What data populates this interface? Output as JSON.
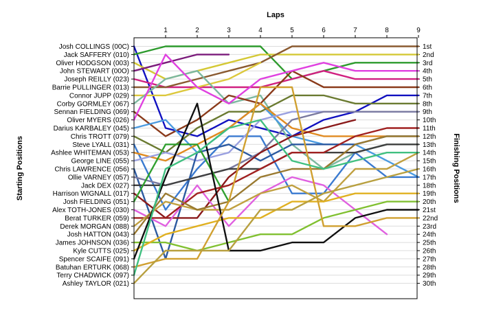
{
  "chart_data": {
    "type": "line",
    "title": "Laps",
    "xlabel": "Laps",
    "ylabel_left": "Starting Positions",
    "ylabel_right": "Finishing Positions",
    "x_ticks": [
      "1",
      "2",
      "3",
      "4",
      "5",
      "6",
      "7",
      "8",
      "9"
    ],
    "xlim": [
      0,
      9
    ],
    "ylim": [
      1,
      30
    ],
    "starting_positions": [
      "Josh COLLINGS (00C)",
      "Jack SAFFERY (010)",
      "Oliver HODGSON (003)",
      "John STEWART (00O)",
      "Joseph REILLY (023)",
      "Barrie PULLINGER (013)",
      "Connor JUPP (029)",
      "Corby GORMLEY (067)",
      "Sennan FIELDING (069)",
      "Oliver MYERS (026)",
      "Darius KARBALEY (045)",
      "Chris TROTT (079)",
      "Steve LYALL (031)",
      "Ashlee WHITEMAN (053)",
      "George LINE (055)",
      "Chris LAWRENCE (056)",
      "Ollie VARNEY (057)",
      "Jack DEX (027)",
      "Harrison WIGNALL (017)",
      "Josh FIELDING (051)",
      "Alex TOTH-JONES (030)",
      "Berat TURKER (059)",
      "Derek MORGAN (088)",
      "Josh HATTON (043)",
      "James JOHNSON (036)",
      "Kyle CUTTS (025)",
      "Spencer SCAIFE (091)",
      "Batuhan ERTURK (068)",
      "Terry CHADWICK (097)",
      "Ashley TAYLOR (021)"
    ],
    "finishing_positions": [
      "1st",
      "2nd",
      "3rd",
      "4th",
      "5th",
      "6th",
      "7th",
      "8th",
      "9th",
      "10th",
      "11th",
      "12th",
      "13th",
      "14th",
      "15th",
      "16th",
      "17th",
      "18th",
      "19th",
      "20th",
      "21st",
      "22nd",
      "23rd",
      "24th",
      "25th",
      "26th",
      "27th",
      "28th",
      "29th",
      "30th"
    ],
    "series": [
      {
        "color": "#1010c0",
        "values": [
          1,
          11,
          12,
          10,
          11,
          12,
          10,
          9,
          7,
          7
        ]
      },
      {
        "color": "#2c9a2c",
        "values": [
          2,
          1,
          1,
          1,
          1,
          5,
          4,
          3,
          3,
          3
        ]
      },
      {
        "color": "#d4c834",
        "values": [
          3,
          5,
          4,
          3,
          2,
          2,
          2,
          2,
          2,
          2
        ]
      },
      {
        "color": "#7a1a7a",
        "values": [
          4,
          3,
          2,
          2
        ]
      },
      {
        "color": "#d02080",
        "values": [
          5,
          6,
          6,
          6,
          6,
          5,
          4,
          5,
          5,
          5
        ]
      },
      {
        "color": "#8a5a30",
        "values": [
          6,
          6,
          5,
          4,
          3,
          1,
          1,
          1,
          1,
          1
        ]
      },
      {
        "color": "#dcc83c",
        "values": [
          7,
          7,
          6,
          5,
          3
        ]
      },
      {
        "color": "#7cb8a0",
        "values": [
          8,
          5,
          4,
          8,
          7,
          13,
          16,
          14,
          13,
          13
        ]
      },
      {
        "color": "#8a3a1a",
        "values": [
          9,
          12,
          10,
          7,
          8,
          4,
          6,
          6,
          6,
          6
        ]
      },
      {
        "color": "#e040e0",
        "values": [
          10,
          2,
          6,
          8,
          5,
          4,
          3,
          4,
          4,
          4
        ]
      },
      {
        "color": "#4a9ae0",
        "values": [
          11,
          10,
          14,
          11,
          8,
          12,
          13,
          13,
          15,
          17
        ]
      },
      {
        "color": "#6a7a30",
        "values": [
          12,
          14,
          11,
          9,
          9,
          7,
          7,
          8,
          8,
          8
        ]
      },
      {
        "color": "#3a7ad0",
        "values": [
          13,
          21,
          16,
          12,
          12,
          19,
          19,
          14,
          17,
          17
        ]
      },
      {
        "color": "#e08a20",
        "values": [
          14,
          15,
          13,
          11,
          8,
          11,
          12,
          12,
          12,
          12
        ]
      },
      {
        "color": "#9aa0e0",
        "values": [
          15,
          14,
          15,
          14,
          10,
          9,
          9,
          9,
          9,
          9
        ]
      },
      {
        "color": "#2c5aa0",
        "values": [
          16,
          27,
          14,
          13,
          15,
          13,
          13,
          13,
          12,
          12
        ]
      },
      {
        "color": "#7a7aa0",
        "values": [
          17,
          18,
          17,
          16,
          14,
          10,
          9,
          9,
          9,
          9
        ]
      },
      {
        "color": "#404040",
        "values": [
          18,
          18,
          17,
          16,
          16,
          14,
          14,
          14,
          13,
          13
        ]
      },
      {
        "color": "#8a1a1a",
        "values": [
          19,
          22,
          22,
          17,
          14,
          12,
          11,
          10
        ]
      },
      {
        "color": "#30a030",
        "values": [
          20,
          13,
          13,
          20
        ]
      },
      {
        "color": "#e060e0",
        "values": [
          21,
          23,
          18,
          23,
          19,
          17,
          18,
          21,
          24
        ]
      },
      {
        "color": "#a02020",
        "values": [
          22,
          22,
          19,
          18,
          16,
          14,
          14,
          12,
          11,
          11
        ]
      },
      {
        "color": "#c0a040",
        "values": [
          23,
          20,
          21,
          21,
          19,
          18,
          20,
          16,
          16,
          14
        ]
      },
      {
        "color": "#9a7a30",
        "values": [
          24,
          19,
          21,
          20,
          17,
          16,
          16,
          13,
          12,
          12
        ]
      },
      {
        "color": "#80c030",
        "values": [
          25,
          25,
          26,
          25,
          24,
          24,
          22,
          21,
          20,
          20
        ]
      },
      {
        "color": "#e0b020",
        "values": [
          26,
          24,
          23,
          22,
          22,
          20,
          20,
          19,
          19,
          19
        ]
      },
      {
        "color": "#101010",
        "values": [
          27,
          17,
          8,
          26,
          26,
          25,
          25,
          22,
          21,
          21
        ]
      },
      {
        "color": "#d0a030",
        "values": [
          28,
          27,
          27,
          20,
          6,
          6,
          23,
          23,
          22,
          22
        ]
      },
      {
        "color": "#40c080",
        "values": [
          29,
          16,
          14,
          11,
          10,
          15,
          16,
          15,
          14,
          14
        ]
      },
      {
        "color": "#b8a040",
        "values": [
          30,
          26,
          26,
          26,
          21,
          21,
          19,
          18,
          17,
          16
        ]
      }
    ]
  }
}
